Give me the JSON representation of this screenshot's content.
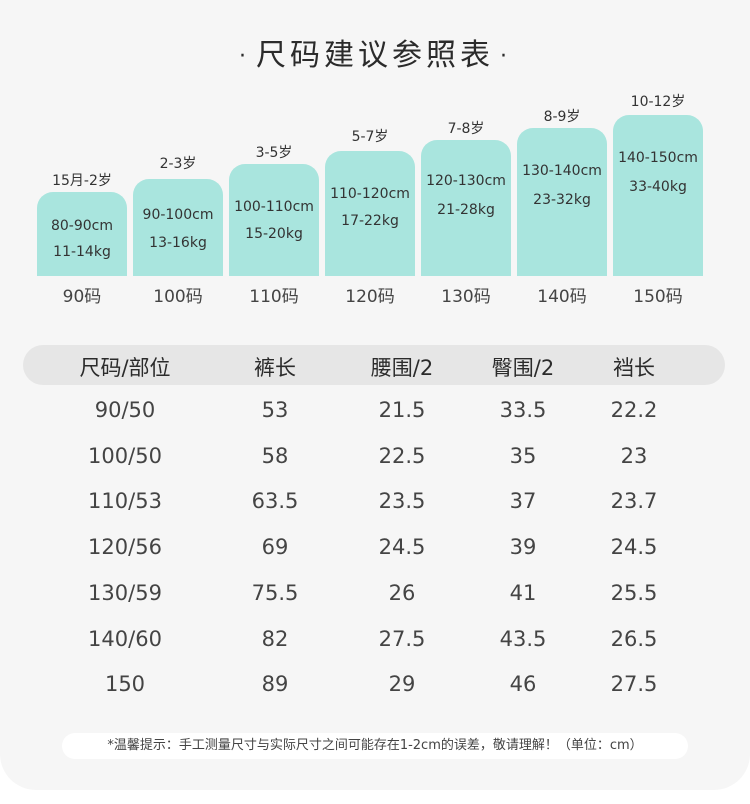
{
  "title": {
    "text": "尺码建议参照表",
    "dot": "·"
  },
  "sizes": [
    {
      "age": "15月-2岁",
      "height": "80-90cm",
      "weight": "11-14kg",
      "code": "90码"
    },
    {
      "age": "2-3岁",
      "height": "90-100cm",
      "weight": "13-16kg",
      "code": "100码"
    },
    {
      "age": "3-5岁",
      "height": "100-110cm",
      "weight": "15-20kg",
      "code": "110码"
    },
    {
      "age": "5-7岁",
      "height": "110-120cm",
      "weight": "17-22kg",
      "code": "120码"
    },
    {
      "age": "7-8岁",
      "height": "120-130cm",
      "weight": "21-28kg",
      "code": "130码"
    },
    {
      "age": "8-9岁",
      "height": "130-140cm",
      "weight": "23-32kg",
      "code": "140码"
    },
    {
      "age": "10-12岁",
      "height": "140-150cm",
      "weight": "33-40kg",
      "code": "150码"
    }
  ],
  "table": {
    "headers": [
      "尺码/部位",
      "裤长",
      "腰围/2",
      "臀围/2",
      "裆长"
    ],
    "rows": [
      [
        "90/50",
        "53",
        "21.5",
        "33.5",
        "22.2"
      ],
      [
        "100/50",
        "58",
        "22.5",
        "35",
        "23"
      ],
      [
        "110/53",
        "63.5",
        "23.5",
        "37",
        "23.7"
      ],
      [
        "120/56",
        "69",
        "24.5",
        "39",
        "24.5"
      ],
      [
        "130/59",
        "75.5",
        "26",
        "41",
        "25.5"
      ],
      [
        "140/60",
        "82",
        "27.5",
        "43.5",
        "26.5"
      ],
      [
        "150",
        "89",
        "29",
        "46",
        "27.5"
      ]
    ]
  },
  "note": "*温馨提示：手工测量尺寸与实际尺寸之间可能存在1-2cm的误差，敬请理解！（单位：cm）",
  "colors": {
    "accent_box": "#a9e5de",
    "background": "#f6f6f6",
    "header_bg": "#e6e6e6"
  }
}
